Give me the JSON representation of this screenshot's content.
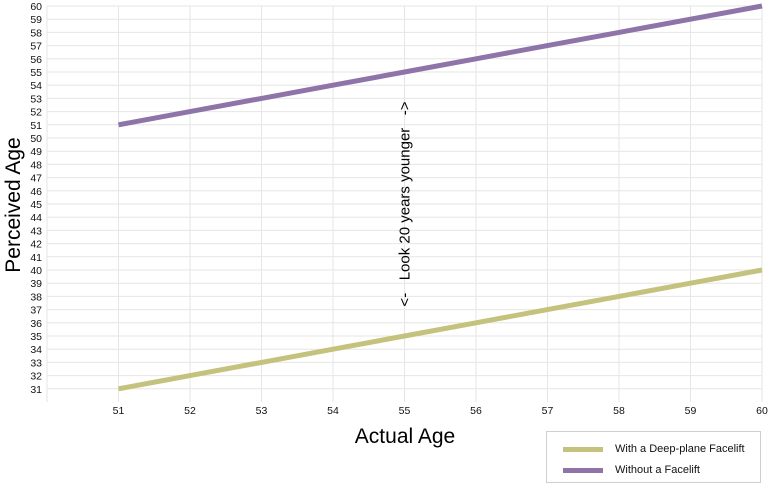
{
  "chart_data": {
    "type": "line",
    "xlabel": "Actual Age",
    "ylabel": "Perceived Age",
    "xlim": [
      50,
      60
    ],
    "ylim": [
      30,
      60
    ],
    "x_ticks": [
      51,
      52,
      53,
      54,
      55,
      56,
      57,
      58,
      59,
      60
    ],
    "y_ticks": [
      31,
      32,
      33,
      34,
      35,
      36,
      37,
      38,
      39,
      40,
      41,
      42,
      43,
      44,
      45,
      46,
      47,
      48,
      49,
      50,
      51,
      52,
      53,
      54,
      55,
      56,
      57,
      58,
      59,
      60
    ],
    "grid": true,
    "legend_position": "bottom-right",
    "series": [
      {
        "name": "With a Deep-plane Facelift",
        "color": "#c4c27d",
        "x": [
          51,
          52,
          53,
          54,
          55,
          56,
          57,
          58,
          59,
          60
        ],
        "values": [
          31,
          32,
          33,
          34,
          35,
          36,
          37,
          38,
          39,
          40
        ]
      },
      {
        "name": "Without a Facelift",
        "color": "#8e74a8",
        "x": [
          51,
          52,
          53,
          54,
          55,
          56,
          57,
          58,
          59,
          60
        ],
        "values": [
          51,
          52,
          53,
          54,
          55,
          56,
          57,
          58,
          59,
          60
        ]
      }
    ],
    "annotation": {
      "text": "<-   Look 20 years younger   ->",
      "x": 55,
      "y_from": 35,
      "y_to": 55
    }
  }
}
